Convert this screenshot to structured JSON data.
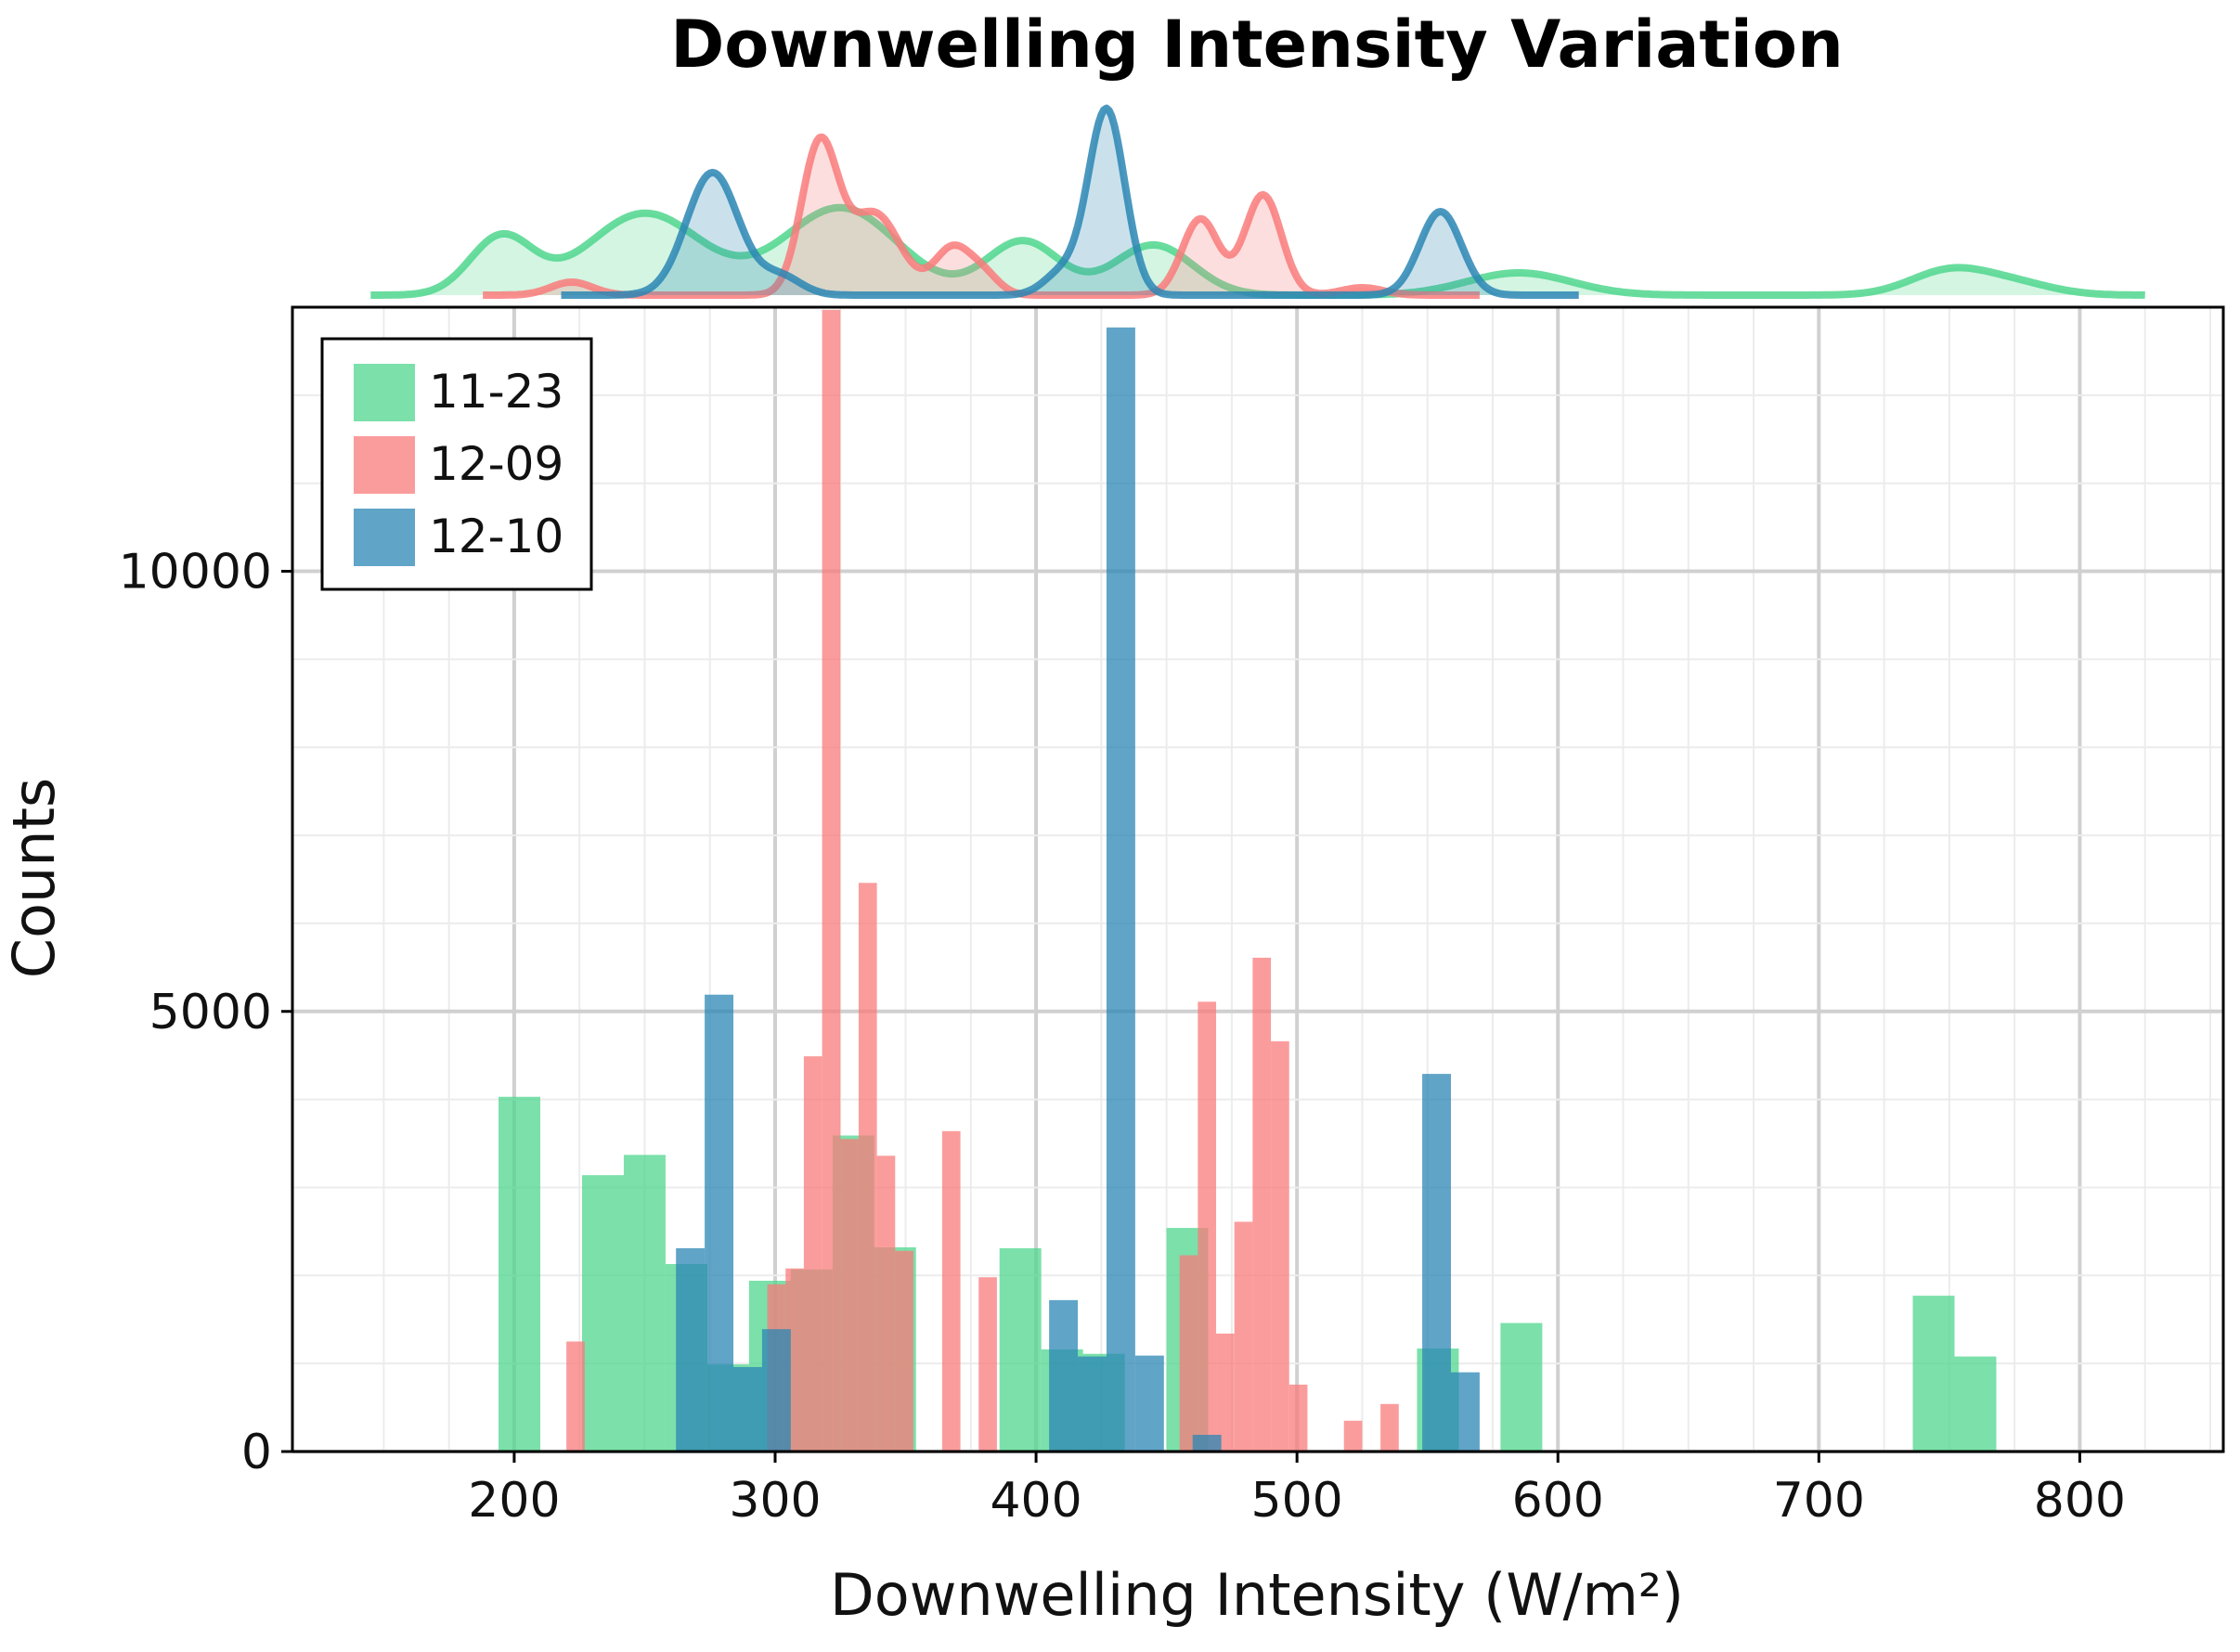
{
  "chart_data": {
    "type": "histogram",
    "title": "Downwelling Intensity Variation",
    "xlabel": "Downwelling Intensity (W/m²)",
    "ylabel": "Counts",
    "xlim": [
      115,
      855
    ],
    "ylim": [
      0,
      13000
    ],
    "x_ticks": [
      200,
      300,
      400,
      500,
      600,
      700,
      800
    ],
    "y_ticks": [
      0,
      5000,
      10000
    ],
    "x_tick_labels": [
      "200",
      "300",
      "400",
      "500",
      "600",
      "700",
      "800"
    ],
    "y_tick_labels": [
      "0",
      "5000",
      "10000"
    ],
    "grid": true,
    "legend_position": "top-left",
    "series": [
      {
        "name": "11-23",
        "color": "#4fd68d",
        "bins": [
          {
            "x0": 194,
            "x1": 210,
            "count": 4030
          },
          {
            "x0": 226,
            "x1": 242,
            "count": 3140
          },
          {
            "x0": 242,
            "x1": 258,
            "count": 3370
          },
          {
            "x0": 258,
            "x1": 274,
            "count": 2130
          },
          {
            "x0": 274,
            "x1": 290,
            "count": 990
          },
          {
            "x0": 290,
            "x1": 306,
            "count": 1940
          },
          {
            "x0": 306,
            "x1": 322,
            "count": 2070
          },
          {
            "x0": 322,
            "x1": 338,
            "count": 3590
          },
          {
            "x0": 338,
            "x1": 354,
            "count": 2320
          },
          {
            "x0": 386,
            "x1": 402,
            "count": 2310
          },
          {
            "x0": 402,
            "x1": 418,
            "count": 1160
          },
          {
            "x0": 418,
            "x1": 434,
            "count": 1110
          },
          {
            "x0": 450,
            "x1": 466,
            "count": 2540
          },
          {
            "x0": 546,
            "x1": 562,
            "count": 1170
          },
          {
            "x0": 578,
            "x1": 594,
            "count": 1460
          },
          {
            "x0": 736,
            "x1": 752,
            "count": 1770
          },
          {
            "x0": 752,
            "x1": 768,
            "count": 1080
          }
        ]
      },
      {
        "name": "12-09",
        "color": "#f97b7b",
        "bins": [
          {
            "x0": 220,
            "x1": 227,
            "count": 1250
          },
          {
            "x0": 297,
            "x1": 304,
            "count": 1900
          },
          {
            "x0": 304,
            "x1": 311,
            "count": 2080
          },
          {
            "x0": 311,
            "x1": 318,
            "count": 4490
          },
          {
            "x0": 318,
            "x1": 325,
            "count": 12970
          },
          {
            "x0": 325,
            "x1": 332,
            "count": 3550
          },
          {
            "x0": 332,
            "x1": 339,
            "count": 6460
          },
          {
            "x0": 339,
            "x1": 346,
            "count": 3360
          },
          {
            "x0": 346,
            "x1": 353,
            "count": 2280
          },
          {
            "x0": 364,
            "x1": 371,
            "count": 3640
          },
          {
            "x0": 378,
            "x1": 385,
            "count": 1980
          },
          {
            "x0": 455,
            "x1": 462,
            "count": 2230
          },
          {
            "x0": 462,
            "x1": 469,
            "count": 5110
          },
          {
            "x0": 469,
            "x1": 476,
            "count": 1340
          },
          {
            "x0": 476,
            "x1": 483,
            "count": 2610
          },
          {
            "x0": 483,
            "x1": 490,
            "count": 5610
          },
          {
            "x0": 490,
            "x1": 497,
            "count": 4660
          },
          {
            "x0": 497,
            "x1": 504,
            "count": 760
          },
          {
            "x0": 518,
            "x1": 525,
            "count": 350
          },
          {
            "x0": 532,
            "x1": 539,
            "count": 540
          }
        ]
      },
      {
        "name": "12-10",
        "color": "#2b86b4",
        "bins": [
          {
            "x0": 262,
            "x1": 273,
            "count": 2310
          },
          {
            "x0": 273,
            "x1": 284,
            "count": 5190
          },
          {
            "x0": 284,
            "x1": 295,
            "count": 960
          },
          {
            "x0": 295,
            "x1": 306,
            "count": 1390
          },
          {
            "x0": 405,
            "x1": 416,
            "count": 1720
          },
          {
            "x0": 416,
            "x1": 427,
            "count": 1080
          },
          {
            "x0": 427,
            "x1": 438,
            "count": 12770
          },
          {
            "x0": 438,
            "x1": 449,
            "count": 1090
          },
          {
            "x0": 460,
            "x1": 471,
            "count": 190
          },
          {
            "x0": 548,
            "x1": 559,
            "count": 4290
          },
          {
            "x0": 559,
            "x1": 570,
            "count": 900
          }
        ]
      }
    ],
    "marginal_kde": [
      {
        "name": "11-23",
        "color": "#4fd68d",
        "x_range": [
          145,
          825
        ],
        "peaks": [
          {
            "x": 195,
            "w": 12,
            "h": 0.31
          },
          {
            "x": 250,
            "w": 22,
            "h": 0.44
          },
          {
            "x": 325,
            "w": 22,
            "h": 0.47
          },
          {
            "x": 395,
            "w": 14,
            "h": 0.29
          },
          {
            "x": 445,
            "w": 15,
            "h": 0.27
          },
          {
            "x": 585,
            "w": 20,
            "h": 0.12
          },
          {
            "x": 750,
            "w": 15,
            "h": 0.13
          },
          {
            "x": 775,
            "w": 15,
            "h": 0.06
          }
        ]
      },
      {
        "name": "12-09",
        "color": "#f97b7b",
        "x_range": [
          188,
          570
        ],
        "peaks": [
          {
            "x": 222,
            "w": 8,
            "h": 0.07
          },
          {
            "x": 317,
            "w": 7,
            "h": 0.8
          },
          {
            "x": 338,
            "w": 10,
            "h": 0.44
          },
          {
            "x": 368,
            "w": 7,
            "h": 0.25
          },
          {
            "x": 380,
            "w": 6,
            "h": 0.1
          },
          {
            "x": 463,
            "w": 7,
            "h": 0.41
          },
          {
            "x": 487,
            "w": 7,
            "h": 0.54
          },
          {
            "x": 525,
            "w": 8,
            "h": 0.04
          }
        ]
      },
      {
        "name": "12-10",
        "color": "#2b86b4",
        "x_range": [
          218,
          608
        ],
        "peaks": [
          {
            "x": 276,
            "w": 10,
            "h": 0.66
          },
          {
            "x": 302,
            "w": 8,
            "h": 0.1
          },
          {
            "x": 410,
            "w": 7,
            "h": 0.12
          },
          {
            "x": 427,
            "w": 7,
            "h": 1.0
          },
          {
            "x": 555,
            "w": 8,
            "h": 0.45
          }
        ]
      }
    ]
  }
}
